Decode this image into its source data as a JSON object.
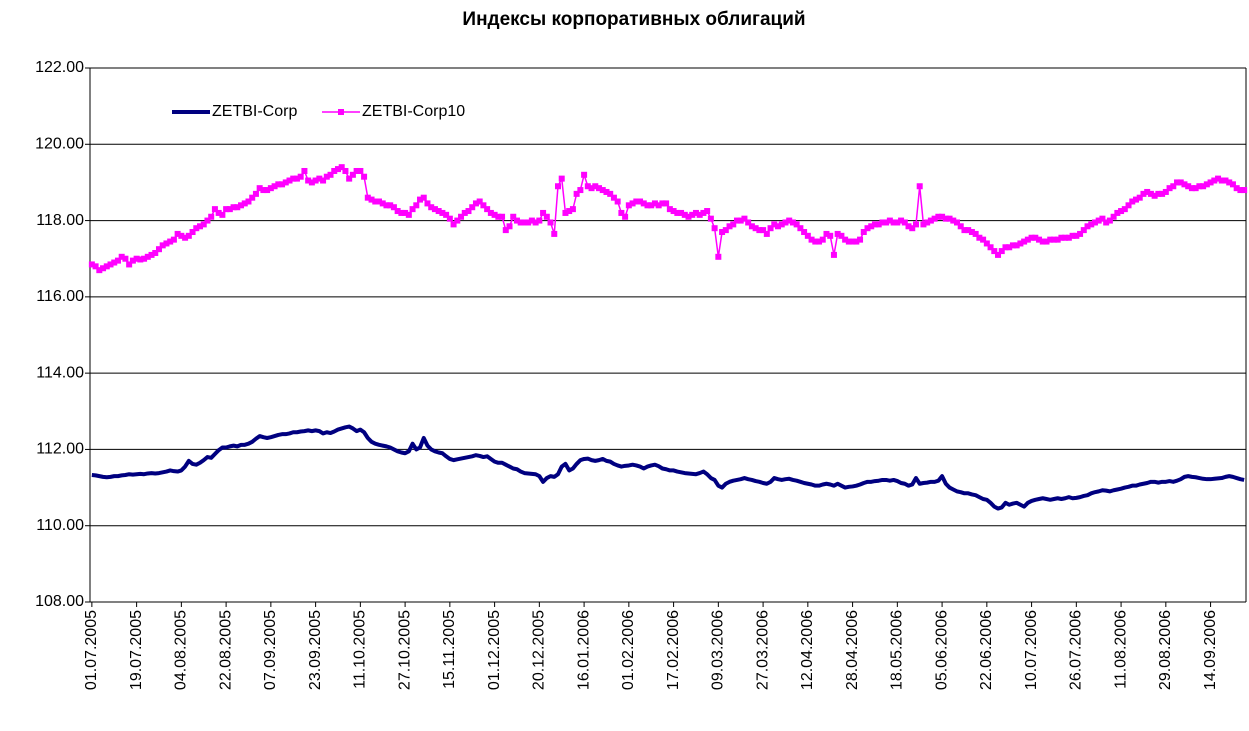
{
  "chart_data": {
    "type": "line",
    "title": "Индексы корпоративных облигаций",
    "categories": [
      "01.07.2005",
      null,
      null,
      null,
      null,
      null,
      null,
      null,
      null,
      null,
      null,
      null,
      "19.07.2005",
      null,
      null,
      null,
      null,
      null,
      null,
      null,
      null,
      null,
      null,
      null,
      "04.08.2005",
      null,
      null,
      null,
      null,
      null,
      null,
      null,
      null,
      null,
      null,
      null,
      "22.08.2005",
      null,
      null,
      null,
      null,
      null,
      null,
      null,
      null,
      null,
      null,
      null,
      "07.09.2005",
      null,
      null,
      null,
      null,
      null,
      null,
      null,
      null,
      null,
      null,
      null,
      "23.09.2005",
      null,
      null,
      null,
      null,
      null,
      null,
      null,
      null,
      null,
      null,
      null,
      "11.10.2005",
      null,
      null,
      null,
      null,
      null,
      null,
      null,
      null,
      null,
      null,
      null,
      "27.10.2005",
      null,
      null,
      null,
      null,
      null,
      null,
      null,
      null,
      null,
      null,
      null,
      "15.11.2005",
      null,
      null,
      null,
      null,
      null,
      null,
      null,
      null,
      null,
      null,
      null,
      "01.12.2005",
      null,
      null,
      null,
      null,
      null,
      null,
      null,
      null,
      null,
      null,
      null,
      "20.12.2005",
      null,
      null,
      null,
      null,
      null,
      null,
      null,
      null,
      null,
      null,
      null,
      "16.01.2006",
      null,
      null,
      null,
      null,
      null,
      null,
      null,
      null,
      null,
      null,
      null,
      "01.02.2006",
      null,
      null,
      null,
      null,
      null,
      null,
      null,
      null,
      null,
      null,
      null,
      "17.02.2006",
      null,
      null,
      null,
      null,
      null,
      null,
      null,
      null,
      null,
      null,
      null,
      "09.03.2006",
      null,
      null,
      null,
      null,
      null,
      null,
      null,
      null,
      null,
      null,
      null,
      "27.03.2006",
      null,
      null,
      null,
      null,
      null,
      null,
      null,
      null,
      null,
      null,
      null,
      "12.04.2006",
      null,
      null,
      null,
      null,
      null,
      null,
      null,
      null,
      null,
      null,
      null,
      "28.04.2006",
      null,
      null,
      null,
      null,
      null,
      null,
      null,
      null,
      null,
      null,
      null,
      "18.05.2006",
      null,
      null,
      null,
      null,
      null,
      null,
      null,
      null,
      null,
      null,
      null,
      "05.06.2006",
      null,
      null,
      null,
      null,
      null,
      null,
      null,
      null,
      null,
      null,
      null,
      "22.06.2006",
      null,
      null,
      null,
      null,
      null,
      null,
      null,
      null,
      null,
      null,
      null,
      "10.07.2006",
      null,
      null,
      null,
      null,
      null,
      null,
      null,
      null,
      null,
      null,
      null,
      "26.07.2006",
      null,
      null,
      null,
      null,
      null,
      null,
      null,
      null,
      null,
      null,
      null,
      "11.08.2006",
      null,
      null,
      null,
      null,
      null,
      null,
      null,
      null,
      null,
      null,
      null,
      "29.08.2006",
      null,
      null,
      null,
      null,
      null,
      null,
      null,
      null,
      null,
      null,
      null,
      "14.09.2006",
      null,
      null,
      null,
      null,
      null,
      null,
      null,
      null,
      null
    ],
    "series": [
      {
        "name": "ZETBI-Corp",
        "color": "#000080",
        "marker": false,
        "values": [
          111.33,
          111.32,
          111.3,
          111.28,
          111.27,
          111.28,
          111.3,
          111.3,
          111.32,
          111.33,
          111.35,
          111.34,
          111.35,
          111.36,
          111.35,
          111.37,
          111.38,
          111.37,
          111.38,
          111.4,
          111.42,
          111.45,
          111.43,
          111.42,
          111.45,
          111.55,
          111.7,
          111.62,
          111.6,
          111.65,
          111.72,
          111.8,
          111.78,
          111.88,
          111.98,
          112.05,
          112.05,
          112.08,
          112.1,
          112.08,
          112.12,
          112.12,
          112.15,
          112.2,
          112.28,
          112.35,
          112.32,
          112.3,
          112.32,
          112.35,
          112.38,
          112.4,
          112.4,
          112.42,
          112.45,
          112.45,
          112.47,
          112.48,
          112.5,
          112.48,
          112.5,
          112.48,
          112.42,
          112.45,
          112.43,
          112.47,
          112.52,
          112.55,
          112.58,
          112.6,
          112.55,
          112.48,
          112.52,
          112.45,
          112.3,
          112.2,
          112.15,
          112.12,
          112.1,
          112.08,
          112.05,
          112.0,
          111.95,
          111.92,
          111.9,
          111.95,
          112.15,
          112.0,
          112.05,
          112.3,
          112.1,
          112.0,
          111.95,
          111.92,
          111.9,
          111.82,
          111.75,
          111.72,
          111.74,
          111.76,
          111.78,
          111.8,
          111.82,
          111.85,
          111.83,
          111.8,
          111.82,
          111.75,
          111.68,
          111.65,
          111.65,
          111.6,
          111.55,
          111.5,
          111.48,
          111.42,
          111.38,
          111.37,
          111.36,
          111.35,
          111.3,
          111.15,
          111.25,
          111.3,
          111.28,
          111.35,
          111.55,
          111.62,
          111.45,
          111.5,
          111.62,
          111.72,
          111.75,
          111.76,
          111.72,
          111.7,
          111.72,
          111.75,
          111.7,
          111.68,
          111.62,
          111.58,
          111.55,
          111.57,
          111.58,
          111.6,
          111.58,
          111.55,
          111.5,
          111.55,
          111.58,
          111.6,
          111.56,
          111.5,
          111.48,
          111.45,
          111.45,
          111.42,
          111.4,
          111.38,
          111.37,
          111.36,
          111.35,
          111.38,
          111.42,
          111.35,
          111.25,
          111.2,
          111.05,
          111.0,
          111.1,
          111.15,
          111.18,
          111.2,
          111.22,
          111.25,
          111.22,
          111.2,
          111.17,
          111.15,
          111.12,
          111.1,
          111.15,
          111.25,
          111.22,
          111.2,
          111.22,
          111.23,
          111.2,
          111.18,
          111.15,
          111.12,
          111.1,
          111.08,
          111.05,
          111.05,
          111.08,
          111.1,
          111.08,
          111.05,
          111.1,
          111.05,
          111.0,
          111.02,
          111.03,
          111.05,
          111.08,
          111.12,
          111.15,
          111.15,
          111.17,
          111.18,
          111.2,
          111.2,
          111.18,
          111.2,
          111.17,
          111.12,
          111.1,
          111.05,
          111.08,
          111.25,
          111.1,
          111.12,
          111.13,
          111.15,
          111.15,
          111.18,
          111.3,
          111.1,
          111.0,
          110.95,
          110.9,
          110.88,
          110.85,
          110.85,
          110.82,
          110.8,
          110.75,
          110.7,
          110.68,
          110.6,
          110.5,
          110.45,
          110.48,
          110.6,
          110.55,
          110.58,
          110.6,
          110.55,
          110.5,
          110.6,
          110.65,
          110.68,
          110.7,
          110.72,
          110.7,
          110.68,
          110.7,
          110.72,
          110.7,
          110.72,
          110.75,
          110.72,
          110.73,
          110.75,
          110.78,
          110.8,
          110.85,
          110.88,
          110.9,
          110.93,
          110.92,
          110.9,
          110.93,
          110.95,
          110.97,
          111.0,
          111.02,
          111.05,
          111.05,
          111.08,
          111.1,
          111.12,
          111.15,
          111.15,
          111.13,
          111.15,
          111.15,
          111.17,
          111.15,
          111.18,
          111.22,
          111.28,
          111.3,
          111.28,
          111.27,
          111.25,
          111.23,
          111.22,
          111.22,
          111.23,
          111.24,
          111.25,
          111.28,
          111.3,
          111.28,
          111.25,
          111.22,
          111.2
        ]
      },
      {
        "name": "ZETBI-Corp10",
        "color": "#ff00ff",
        "marker": true,
        "values": [
          116.85,
          116.8,
          116.7,
          116.75,
          116.8,
          116.85,
          116.9,
          116.95,
          117.05,
          117.0,
          116.85,
          116.95,
          117.0,
          116.98,
          117.0,
          117.05,
          117.1,
          117.15,
          117.25,
          117.35,
          117.4,
          117.45,
          117.5,
          117.65,
          117.6,
          117.55,
          117.6,
          117.7,
          117.8,
          117.85,
          117.9,
          118.0,
          118.1,
          118.3,
          118.2,
          118.15,
          118.3,
          118.3,
          118.35,
          118.35,
          118.4,
          118.45,
          118.5,
          118.6,
          118.7,
          118.85,
          118.8,
          118.8,
          118.85,
          118.9,
          118.95,
          118.95,
          119.0,
          119.05,
          119.1,
          119.1,
          119.15,
          119.3,
          119.05,
          119.0,
          119.05,
          119.1,
          119.05,
          119.15,
          119.2,
          119.3,
          119.35,
          119.4,
          119.3,
          119.1,
          119.2,
          119.3,
          119.3,
          119.15,
          118.6,
          118.55,
          118.5,
          118.5,
          118.45,
          118.4,
          118.4,
          118.35,
          118.25,
          118.2,
          118.2,
          118.15,
          118.3,
          118.4,
          118.55,
          118.6,
          118.45,
          118.35,
          118.3,
          118.25,
          118.2,
          118.15,
          118.05,
          117.9,
          118.0,
          118.1,
          118.2,
          118.25,
          118.35,
          118.45,
          118.5,
          118.4,
          118.3,
          118.2,
          118.15,
          118.1,
          118.1,
          117.75,
          117.85,
          118.1,
          118.0,
          117.95,
          117.95,
          117.95,
          118.0,
          117.95,
          118.0,
          118.2,
          118.1,
          117.95,
          117.65,
          118.9,
          119.1,
          118.2,
          118.25,
          118.3,
          118.7,
          118.8,
          119.2,
          118.9,
          118.85,
          118.9,
          118.85,
          118.8,
          118.75,
          118.7,
          118.6,
          118.5,
          118.2,
          118.1,
          118.4,
          118.45,
          118.5,
          118.5,
          118.45,
          118.4,
          118.4,
          118.45,
          118.4,
          118.45,
          118.45,
          118.3,
          118.25,
          118.2,
          118.2,
          118.15,
          118.1,
          118.15,
          118.2,
          118.15,
          118.2,
          118.25,
          118.05,
          117.8,
          117.05,
          117.7,
          117.75,
          117.85,
          117.9,
          118.0,
          118.0,
          118.05,
          117.95,
          117.85,
          117.8,
          117.75,
          117.75,
          117.65,
          117.8,
          117.9,
          117.85,
          117.9,
          117.95,
          118.0,
          117.95,
          117.9,
          117.8,
          117.7,
          117.6,
          117.5,
          117.45,
          117.45,
          117.5,
          117.65,
          117.6,
          117.1,
          117.65,
          117.6,
          117.5,
          117.45,
          117.45,
          117.45,
          117.5,
          117.7,
          117.8,
          117.85,
          117.9,
          117.9,
          117.95,
          117.95,
          118.0,
          117.95,
          117.95,
          118.0,
          117.95,
          117.85,
          117.8,
          117.9,
          118.9,
          117.9,
          117.95,
          118.0,
          118.05,
          118.1,
          118.1,
          118.05,
          118.05,
          118.0,
          117.95,
          117.85,
          117.75,
          117.75,
          117.7,
          117.65,
          117.55,
          117.5,
          117.4,
          117.3,
          117.2,
          117.1,
          117.2,
          117.3,
          117.3,
          117.35,
          117.35,
          117.4,
          117.45,
          117.5,
          117.55,
          117.55,
          117.5,
          117.45,
          117.45,
          117.5,
          117.5,
          117.5,
          117.55,
          117.55,
          117.55,
          117.6,
          117.6,
          117.65,
          117.75,
          117.85,
          117.9,
          117.95,
          118.0,
          118.05,
          117.95,
          118.0,
          118.1,
          118.2,
          118.25,
          118.3,
          118.4,
          118.5,
          118.55,
          118.6,
          118.7,
          118.75,
          118.7,
          118.65,
          118.7,
          118.7,
          118.75,
          118.85,
          118.9,
          119.0,
          119.0,
          118.95,
          118.9,
          118.85,
          118.85,
          118.9,
          118.9,
          118.95,
          119.0,
          119.05,
          119.1,
          119.05,
          119.05,
          119.0,
          118.95,
          118.85,
          118.8,
          118.8
        ]
      }
    ],
    "ylim": [
      108,
      122
    ],
    "yticks": [
      {
        "value": 108,
        "label": "108.00"
      },
      {
        "value": 110,
        "label": "110.00"
      },
      {
        "value": 112,
        "label": "112.00"
      },
      {
        "value": 114,
        "label": "114.00"
      },
      {
        "value": 116,
        "label": "116.00"
      },
      {
        "value": 118,
        "label": "118.00"
      },
      {
        "value": 120,
        "label": "120.00"
      },
      {
        "value": 122,
        "label": "122.00"
      }
    ],
    "grid": true,
    "legend": "upper-left"
  }
}
